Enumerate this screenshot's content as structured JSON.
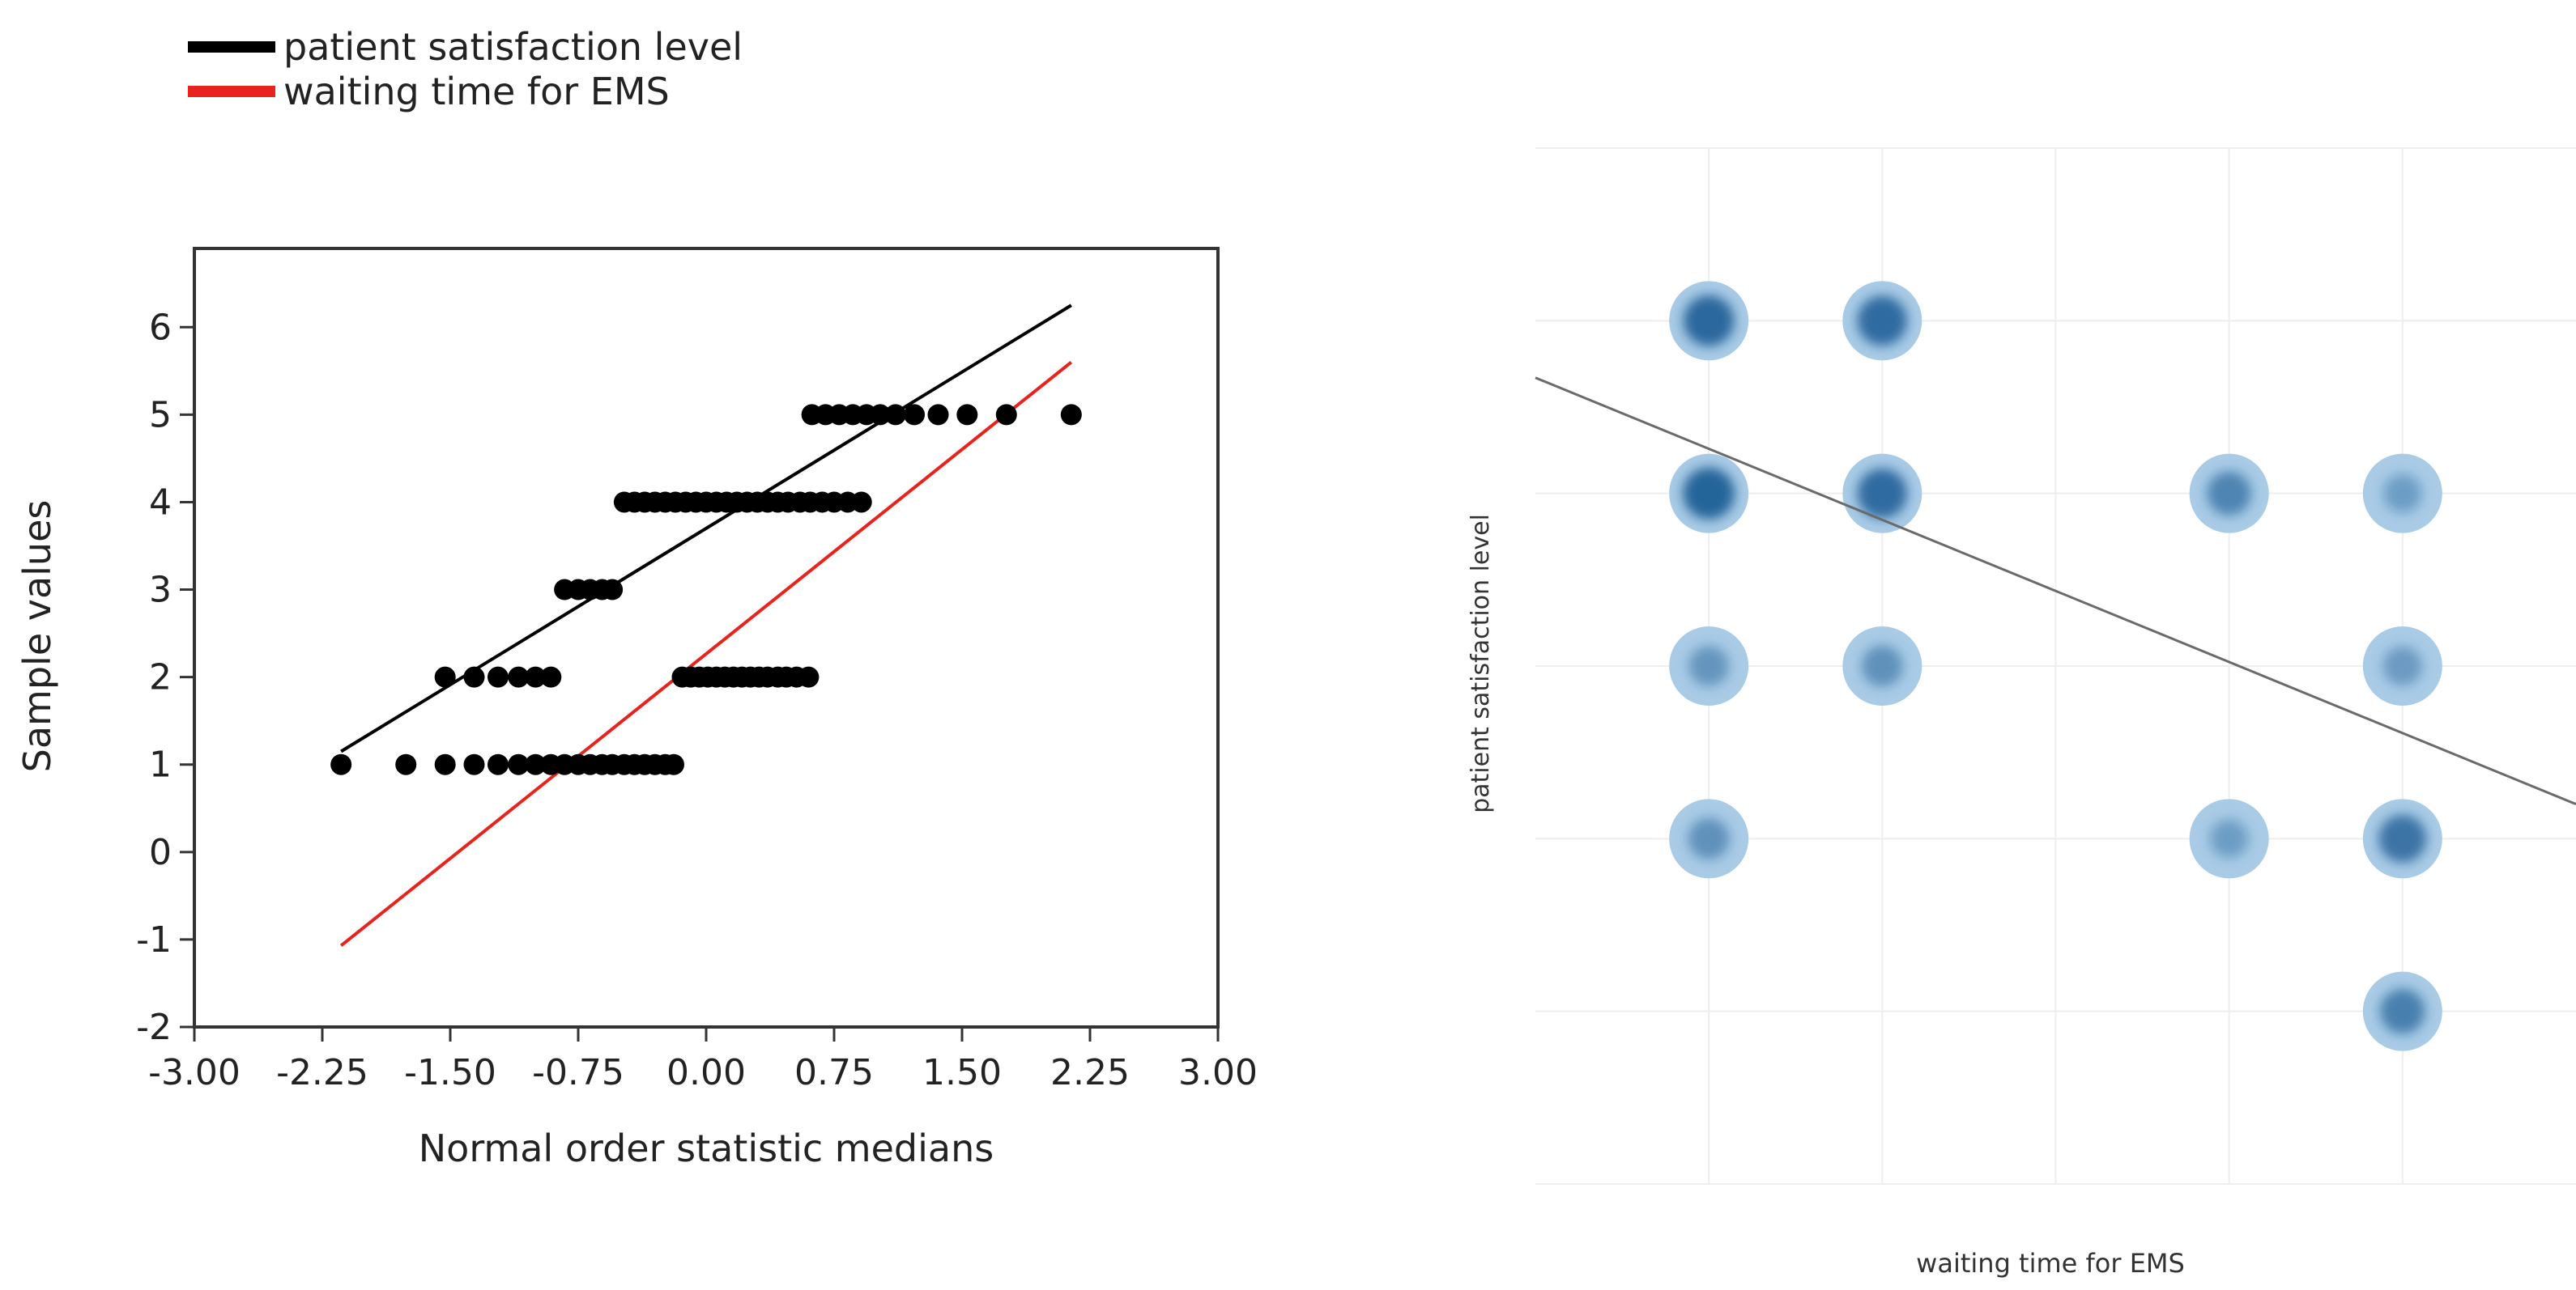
{
  "chart_data": [
    {
      "type": "scatter",
      "subtype": "normal-qq-plot",
      "title": "",
      "xlabel": "Normal order statistic medians",
      "ylabel": "Sample values",
      "xlim": [
        -3.0,
        3.0
      ],
      "ylim": [
        -2,
        6.9
      ],
      "x_ticks": [
        -3.0,
        -2.25,
        -1.5,
        -0.75,
        0.0,
        0.75,
        1.5,
        2.25,
        3.0
      ],
      "x_tick_labels": [
        "-3.00",
        "-2.25",
        "-1.50",
        "-0.75",
        "0.00",
        "0.75",
        "1.50",
        "2.25",
        "3.00"
      ],
      "y_ticks": [
        -2,
        -1,
        0,
        1,
        2,
        3,
        4,
        5,
        6
      ],
      "y_tick_labels": [
        "-2",
        "-1",
        "0",
        "1",
        "2",
        "3",
        "4",
        "5",
        "6"
      ],
      "legend": {
        "placement": "top-left",
        "entries": [
          {
            "label": "patient satisfaction level",
            "color": "#000000"
          },
          {
            "label": "waiting time for EMS",
            "color": "#e8221c"
          }
        ]
      },
      "reference_lines": [
        {
          "name": "patient satisfaction level",
          "color": "#000000",
          "x": [
            -2.14,
            2.14
          ],
          "y": [
            1.15,
            6.25
          ]
        },
        {
          "name": "waiting time for EMS",
          "color": "#e8221c",
          "x": [
            -2.14,
            2.14
          ],
          "y": [
            -1.07,
            5.6
          ]
        }
      ],
      "point_color": "#000000",
      "points": [
        {
          "x": -2.14,
          "y": 1
        },
        {
          "x": -1.76,
          "y": 1
        },
        {
          "x": -1.53,
          "y": 1
        },
        {
          "x": -1.36,
          "y": 1
        },
        {
          "x": -1.22,
          "y": 1
        },
        {
          "x": -1.1,
          "y": 1
        },
        {
          "x": -1.0,
          "y": 1
        },
        {
          "x": -0.91,
          "y": 1
        },
        {
          "x": -0.83,
          "y": 1
        },
        {
          "x": -0.75,
          "y": 1
        },
        {
          "x": -0.68,
          "y": 1
        },
        {
          "x": -0.61,
          "y": 1
        },
        {
          "x": -0.55,
          "y": 1
        },
        {
          "x": -0.48,
          "y": 1
        },
        {
          "x": -0.42,
          "y": 1
        },
        {
          "x": -0.36,
          "y": 1
        },
        {
          "x": -0.3,
          "y": 1
        },
        {
          "x": -0.24,
          "y": 1
        },
        {
          "x": -0.19,
          "y": 1
        },
        {
          "x": -1.53,
          "y": 2
        },
        {
          "x": -1.36,
          "y": 2
        },
        {
          "x": -1.22,
          "y": 2
        },
        {
          "x": -1.1,
          "y": 2
        },
        {
          "x": -1.0,
          "y": 2
        },
        {
          "x": -0.91,
          "y": 2
        },
        {
          "x": -0.14,
          "y": 2
        },
        {
          "x": -0.09,
          "y": 2
        },
        {
          "x": -0.04,
          "y": 2
        },
        {
          "x": 0.01,
          "y": 2
        },
        {
          "x": 0.06,
          "y": 2
        },
        {
          "x": 0.11,
          "y": 2
        },
        {
          "x": 0.16,
          "y": 2
        },
        {
          "x": 0.21,
          "y": 2
        },
        {
          "x": 0.26,
          "y": 2
        },
        {
          "x": 0.31,
          "y": 2
        },
        {
          "x": 0.36,
          "y": 2
        },
        {
          "x": 0.42,
          "y": 2
        },
        {
          "x": 0.47,
          "y": 2
        },
        {
          "x": 0.53,
          "y": 2
        },
        {
          "x": 0.6,
          "y": 2
        },
        {
          "x": -0.83,
          "y": 3
        },
        {
          "x": -0.75,
          "y": 3
        },
        {
          "x": -0.68,
          "y": 3
        },
        {
          "x": -0.61,
          "y": 3
        },
        {
          "x": -0.55,
          "y": 3
        },
        {
          "x": -0.48,
          "y": 4
        },
        {
          "x": -0.42,
          "y": 4
        },
        {
          "x": -0.36,
          "y": 4
        },
        {
          "x": -0.3,
          "y": 4
        },
        {
          "x": -0.24,
          "y": 4
        },
        {
          "x": -0.18,
          "y": 4
        },
        {
          "x": -0.12,
          "y": 4
        },
        {
          "x": -0.06,
          "y": 4
        },
        {
          "x": 0.0,
          "y": 4
        },
        {
          "x": 0.06,
          "y": 4
        },
        {
          "x": 0.12,
          "y": 4
        },
        {
          "x": 0.18,
          "y": 4
        },
        {
          "x": 0.24,
          "y": 4
        },
        {
          "x": 0.3,
          "y": 4
        },
        {
          "x": 0.36,
          "y": 4
        },
        {
          "x": 0.42,
          "y": 4
        },
        {
          "x": 0.48,
          "y": 4
        },
        {
          "x": 0.55,
          "y": 4
        },
        {
          "x": 0.61,
          "y": 4
        },
        {
          "x": 0.68,
          "y": 4
        },
        {
          "x": 0.75,
          "y": 4
        },
        {
          "x": 0.83,
          "y": 4
        },
        {
          "x": 0.91,
          "y": 4
        },
        {
          "x": 0.62,
          "y": 5
        },
        {
          "x": 0.7,
          "y": 5
        },
        {
          "x": 0.78,
          "y": 5
        },
        {
          "x": 0.86,
          "y": 5
        },
        {
          "x": 0.94,
          "y": 5
        },
        {
          "x": 1.02,
          "y": 5
        },
        {
          "x": 1.11,
          "y": 5
        },
        {
          "x": 1.22,
          "y": 5
        },
        {
          "x": 1.36,
          "y": 5
        },
        {
          "x": 1.53,
          "y": 5
        },
        {
          "x": 1.76,
          "y": 5
        },
        {
          "x": 2.14,
          "y": 5
        }
      ]
    },
    {
      "type": "scatter",
      "subtype": "density-bubble",
      "title": "",
      "xlabel": "waiting time for EMS",
      "ylabel": "patient satisfaction level",
      "x_tick_labels": [],
      "y_tick_labels": [],
      "xlim": [
        0,
        6
      ],
      "ylim": [
        0,
        6
      ],
      "x_gridlines": [
        1,
        2,
        3,
        4,
        5
      ],
      "y_gridlines": [
        1,
        2,
        3,
        4,
        5
      ],
      "point_color": "#1f5f96",
      "points": [
        {
          "x": 1,
          "y": 5,
          "intensity": 0.95
        },
        {
          "x": 2,
          "y": 5,
          "intensity": 0.9
        },
        {
          "x": 1,
          "y": 4,
          "intensity": 1.0
        },
        {
          "x": 2,
          "y": 4,
          "intensity": 0.9
        },
        {
          "x": 4,
          "y": 4,
          "intensity": 0.6
        },
        {
          "x": 5,
          "y": 4,
          "intensity": 0.3
        },
        {
          "x": 1,
          "y": 3,
          "intensity": 0.4
        },
        {
          "x": 2,
          "y": 3,
          "intensity": 0.45
        },
        {
          "x": 5,
          "y": 3,
          "intensity": 0.35
        },
        {
          "x": 1,
          "y": 2,
          "intensity": 0.45
        },
        {
          "x": 4,
          "y": 2,
          "intensity": 0.3
        },
        {
          "x": 5,
          "y": 2,
          "intensity": 0.8
        },
        {
          "x": 5,
          "y": 1,
          "intensity": 0.65
        }
      ],
      "trend_line": {
        "color": "#6a6a6a",
        "x": [
          0,
          6
        ],
        "y": [
          4.67,
          2.2
        ]
      }
    }
  ]
}
